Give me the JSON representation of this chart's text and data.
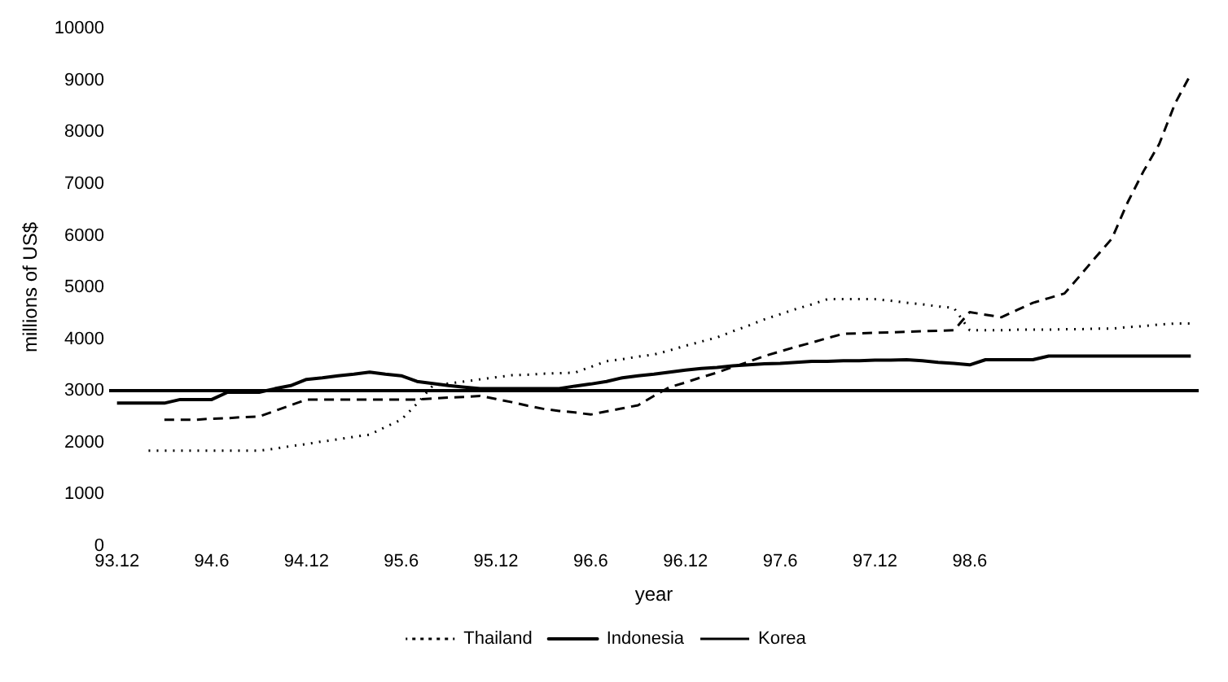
{
  "chart_data": {
    "type": "line",
    "xlabel": "year",
    "ylabel": "millions of US$",
    "categories": [
      "93.12",
      null,
      null,
      null,
      null,
      null,
      "94.6",
      null,
      null,
      null,
      null,
      null,
      "94.12",
      null,
      null,
      null,
      null,
      null,
      "95.6",
      null,
      null,
      null,
      null,
      null,
      "95.12",
      null,
      null,
      null,
      null,
      null,
      "96.6",
      null,
      null,
      null,
      null,
      null,
      "96.12",
      null,
      null,
      null,
      null,
      null,
      "97.6",
      null,
      null,
      null,
      null,
      null,
      "97.12",
      null,
      null,
      null,
      null,
      null,
      "98.6",
      null,
      null,
      null,
      null,
      null,
      null,
      null,
      null,
      null,
      null,
      null,
      null,
      null,
      null
    ],
    "ylim": [
      0,
      10000
    ],
    "yticks": [
      0,
      1000,
      2000,
      3000,
      4000,
      5000,
      6000,
      7000,
      8000,
      9000,
      10000
    ],
    "grid": false,
    "legend": "bottom",
    "marker": "none",
    "ref_lines": [
      {
        "axis": "y",
        "value": 3000,
        "color": "#000000"
      }
    ],
    "series": [
      {
        "name": "Thailand",
        "color": "#000000",
        "line_style": "dotted",
        "values": [
          null,
          null,
          1840,
          1840,
          1840,
          1840,
          1840,
          1840,
          1840,
          1840,
          1880,
          1930,
          1970,
          2020,
          2060,
          2110,
          2150,
          2300,
          2440,
          2750,
          3100,
          3140,
          3180,
          3220,
          3260,
          3300,
          3310,
          3330,
          3340,
          3350,
          3460,
          3570,
          3610,
          3660,
          3700,
          3780,
          3870,
          3950,
          4030,
          4150,
          4260,
          4380,
          4480,
          4580,
          4670,
          4770,
          4770,
          4770,
          4770,
          4740,
          4700,
          4670,
          4630,
          4600,
          4170,
          4170,
          4170,
          4180,
          4180,
          4180,
          4190,
          4190,
          4200,
          4200,
          4230,
          4250,
          4280,
          4300,
          4300
        ]
      },
      {
        "name": "Indonesia",
        "color": "#000000",
        "line_style": "solid",
        "values": [
          2760,
          2760,
          2760,
          2760,
          2830,
          2830,
          2830,
          2970,
          2970,
          2970,
          3040,
          3100,
          3220,
          3250,
          3290,
          3320,
          3360,
          3320,
          3290,
          3180,
          3140,
          3100,
          3070,
          3040,
          3040,
          3040,
          3040,
          3040,
          3040,
          3090,
          3130,
          3180,
          3250,
          3290,
          3320,
          3360,
          3400,
          3430,
          3450,
          3480,
          3500,
          3520,
          3530,
          3550,
          3570,
          3570,
          3580,
          3580,
          3590,
          3590,
          3600,
          3580,
          3550,
          3530,
          3500,
          3600,
          3600,
          3600,
          3600,
          3670,
          3670,
          3670,
          3670,
          3670,
          3670,
          3670,
          3670,
          3670,
          3670
        ]
      },
      {
        "name": "Korea",
        "color": "#000000",
        "line_style": "dashed",
        "values": [
          null,
          null,
          null,
          2440,
          2440,
          2440,
          2460,
          2470,
          2490,
          2500,
          2610,
          2720,
          2830,
          2830,
          2830,
          2830,
          2830,
          2830,
          2830,
          2830,
          2850,
          2870,
          2880,
          2900,
          2840,
          2780,
          2710,
          2650,
          2610,
          2580,
          2540,
          2600,
          2660,
          2720,
          2900,
          3070,
          3160,
          3260,
          3350,
          3460,
          3560,
          3670,
          3760,
          3850,
          3930,
          4020,
          4100,
          4110,
          4120,
          4130,
          4140,
          4150,
          4160,
          4170,
          4520,
          4470,
          4420,
          4560,
          4700,
          4790,
          4880,
          5230,
          5590,
          5940,
          6640,
          7240,
          7770,
          8550,
          9120
        ]
      }
    ]
  }
}
